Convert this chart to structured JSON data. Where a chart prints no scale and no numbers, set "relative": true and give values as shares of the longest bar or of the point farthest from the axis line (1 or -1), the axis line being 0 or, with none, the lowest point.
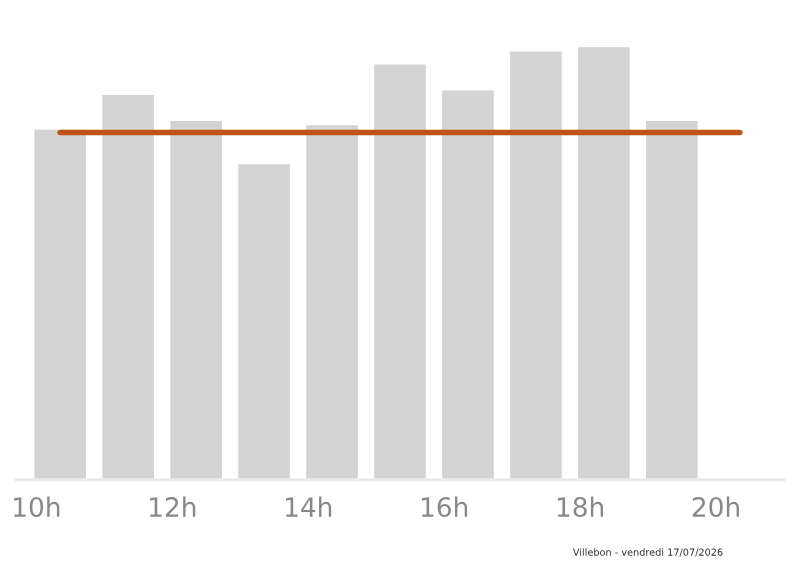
{
  "chart_data": {
    "type": "bar",
    "relative": true,
    "x": [
      10.35,
      11.35,
      12.35,
      13.35,
      14.35,
      15.35,
      16.35,
      17.35,
      18.35,
      19.35
    ],
    "series": [
      {
        "color": "#d3d3d3",
        "values": [
          0.81,
          0.89,
          0.83,
          0.73,
          0.82,
          0.96,
          0.9,
          0.99,
          1.0,
          0.83
        ]
      },
      {
        "type": "line",
        "color": "#c0531a",
        "x": [
          10.35,
          20.35
        ],
        "values": [
          0.8,
          0.8
        ]
      }
    ],
    "xlim": [
      9.7,
      21
    ],
    "xticks": [
      {
        "value": 10,
        "label": "10h"
      },
      {
        "value": 12,
        "label": "12h"
      },
      {
        "value": 14,
        "label": "14h"
      },
      {
        "value": 16,
        "label": "16h"
      },
      {
        "value": 18,
        "label": "18h"
      },
      {
        "value": 20,
        "label": "20h"
      }
    ],
    "grid": false,
    "legend": false,
    "annotations": [
      "Villebon - vendredi 17/07/2026"
    ]
  }
}
